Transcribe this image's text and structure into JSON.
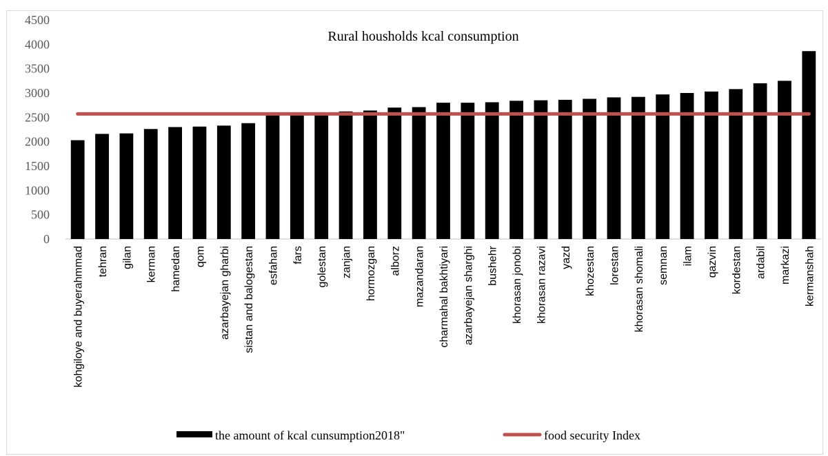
{
  "chart_data": {
    "type": "bar",
    "title": "Rural housholds kcal consumption",
    "xlabel": "",
    "ylabel": "",
    "ylim": [
      0,
      4500
    ],
    "yticks": [
      0,
      500,
      1000,
      1500,
      2000,
      2500,
      3000,
      3500,
      4000,
      4500
    ],
    "grid": false,
    "legend_position": "bottom",
    "categories": [
      "kohgiloye and buyerahmmad",
      "tehran",
      "gilan",
      "kerman",
      "hamedan",
      "qom",
      "azarbayejan gharbi",
      "sistan and balogestan",
      "esfahan",
      "fars",
      "golestan",
      "zanjan",
      "hormozgan",
      "alborz",
      "mazandaran",
      "charmahal bakhtiyari",
      "azarbayejan sharghi",
      "bushehr",
      "khorasan jonobi",
      "khorasan razavi",
      "yazd",
      "khozestan",
      "lorestan",
      "khorasan shomali",
      "semnan",
      "ilam",
      "qazvin",
      "kordestan",
      "ardabil",
      "markazi",
      "kermanshah"
    ],
    "series": [
      {
        "name": "the amount of kcal cunsumption2018\"",
        "type": "bar",
        "color": "#000000",
        "values": [
          2030,
          2160,
          2170,
          2260,
          2300,
          2310,
          2330,
          2380,
          2570,
          2580,
          2600,
          2620,
          2640,
          2700,
          2710,
          2800,
          2800,
          2810,
          2840,
          2850,
          2860,
          2880,
          2910,
          2920,
          2970,
          3000,
          3030,
          3080,
          3200,
          3250,
          3860
        ]
      },
      {
        "name": "food security  Index",
        "type": "line",
        "color": "#c0504d",
        "value": 2570
      }
    ]
  }
}
